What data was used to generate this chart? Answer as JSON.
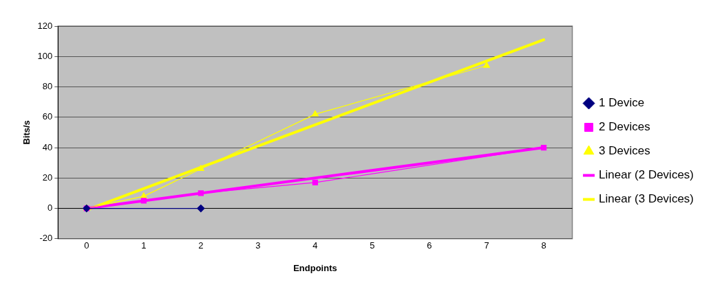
{
  "chart_data": {
    "type": "line",
    "xlabel": "Endpoints",
    "ylabel": "Bits/s",
    "xlim": [
      -0.5,
      8.5
    ],
    "xticks": [
      0,
      1,
      2,
      3,
      4,
      5,
      6,
      7,
      8
    ],
    "ylim": [
      -20,
      120
    ],
    "yticks": [
      -20,
      0,
      20,
      40,
      60,
      80,
      100,
      120
    ],
    "grid": "y",
    "legend": "right",
    "series": [
      {
        "name": "1 Device",
        "color": "#000080",
        "marker": "diamond",
        "x": [
          0,
          2
        ],
        "values": [
          0,
          0
        ]
      },
      {
        "name": "2 Devices",
        "color": "#ff00ff",
        "marker": "square",
        "x": [
          0,
          1,
          2,
          4,
          8
        ],
        "values": [
          0,
          5,
          10,
          17,
          40
        ]
      },
      {
        "name": "3 Devices",
        "color": "#ffff00",
        "marker": "triangle",
        "x": [
          0,
          1,
          2,
          4,
          7
        ],
        "values": [
          0,
          8,
          26,
          62,
          94
        ]
      },
      {
        "name": "Linear (2 Devices)",
        "color": "#ff00ff",
        "marker": "none",
        "x": [
          0,
          8
        ],
        "values": [
          0,
          40
        ]
      },
      {
        "name": "Linear (3 Devices)",
        "color": "#ffff00",
        "marker": "none",
        "x": [
          0,
          8
        ],
        "values": [
          -1,
          111
        ]
      }
    ]
  }
}
